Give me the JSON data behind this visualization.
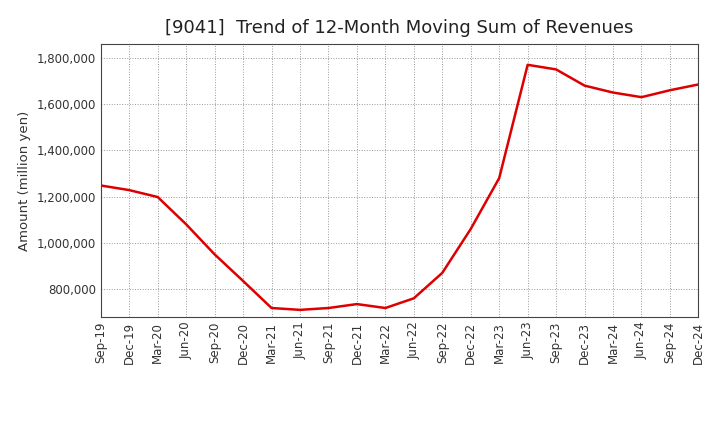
{
  "title": "[9041]  Trend of 12-Month Moving Sum of Revenues",
  "ylabel": "Amount (million yen)",
  "line_color": "#dd0000",
  "background_color": "#ffffff",
  "grid_color": "#999999",
  "x_labels": [
    "Sep-19",
    "Dec-19",
    "Mar-20",
    "Jun-20",
    "Sep-20",
    "Dec-20",
    "Mar-21",
    "Jun-21",
    "Sep-21",
    "Dec-21",
    "Mar-22",
    "Jun-22",
    "Sep-22",
    "Dec-22",
    "Mar-23",
    "Jun-23",
    "Sep-23",
    "Dec-23",
    "Mar-24",
    "Jun-24",
    "Sep-24",
    "Dec-24"
  ],
  "y_values": [
    1248000,
    1228000,
    1198000,
    1080000,
    950000,
    835000,
    718000,
    710000,
    718000,
    735000,
    718000,
    760000,
    870000,
    1060000,
    1280000,
    1770000,
    1750000,
    1680000,
    1650000,
    1630000,
    1660000,
    1685000
  ],
  "ylim": [
    680000,
    1860000
  ],
  "yticks": [
    800000,
    1000000,
    1200000,
    1400000,
    1600000,
    1800000
  ],
  "title_fontsize": 13,
  "axis_fontsize": 9.5,
  "tick_fontsize": 8.5
}
